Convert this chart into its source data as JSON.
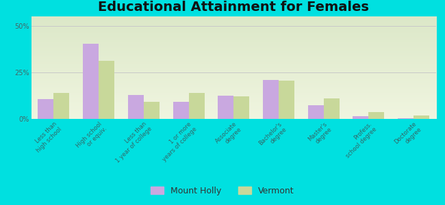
{
  "title": "Educational Attainment for Females",
  "categories": [
    "Less than\nhigh school",
    "High school\nor equiv.",
    "Less than\n1 year of college",
    "1 or more\nyears of college",
    "Associate\ndegree",
    "Bachelor's\ndegree",
    "Master's\ndegree",
    "Profess.\nschool degree",
    "Doctorate\ndegree"
  ],
  "mount_holly": [
    10.5,
    40.5,
    13.0,
    9.0,
    12.5,
    21.0,
    7.5,
    1.5,
    0.5
  ],
  "vermont": [
    14.0,
    31.0,
    9.0,
    14.0,
    12.0,
    20.5,
    11.0,
    3.5,
    2.0
  ],
  "mount_holly_color": "#c9a8e0",
  "vermont_color": "#c8d89a",
  "background_outer": "#00e0e0",
  "background_inner_top": "#dce8c8",
  "background_inner_bottom": "#f0f5e0",
  "grid_color": "#c8c8c8",
  "yticks": [
    0,
    25,
    50
  ],
  "ylim": [
    0,
    55
  ],
  "bar_width": 0.35,
  "title_fontsize": 14,
  "tick_fontsize": 6.0,
  "legend_fontsize": 9
}
